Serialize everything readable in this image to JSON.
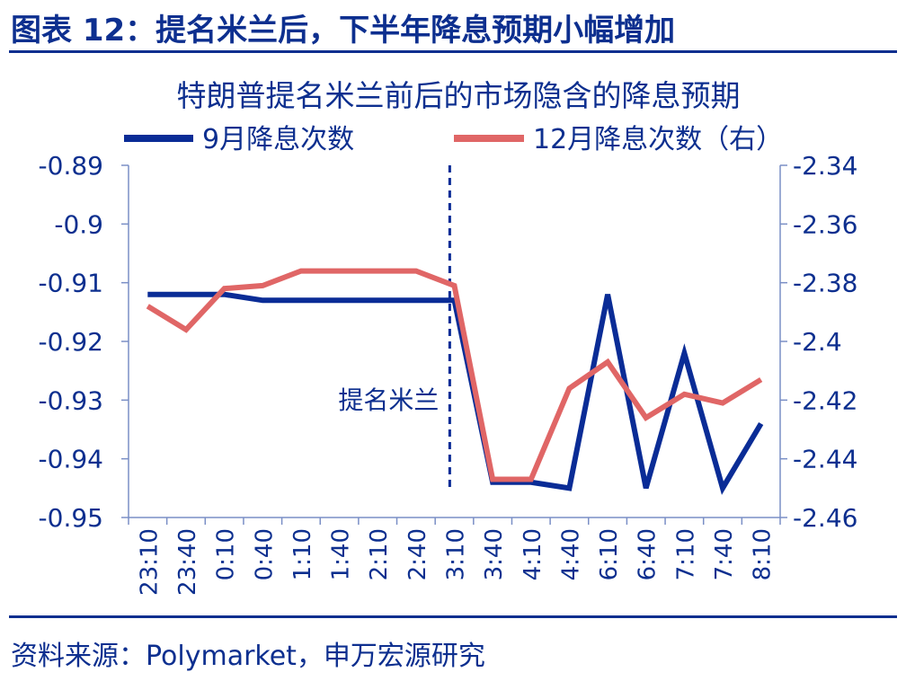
{
  "figure_title": "图表 12：提名米兰后，下半年降息预期小幅增加",
  "source": "资料来源：Polymarket，申万宏源研究",
  "colors": {
    "dark_blue": "#0d2f8f",
    "series1": "#0a2c96",
    "series2": "#e06666",
    "axis": "#7a8fc6"
  },
  "chart_data": {
    "type": "line",
    "title": "特朗普提名米兰前后的市场隐含的降息预期",
    "xlabel": "",
    "ylabel": "",
    "x": [
      "23:10",
      "23:40",
      "0:10",
      "0:40",
      "1:10",
      "1:40",
      "2:10",
      "2:40",
      "3:10",
      "3:40",
      "4:10",
      "4:40",
      "6:10",
      "6:40",
      "7:10",
      "7:40",
      "8:10"
    ],
    "series": [
      {
        "name": "9月降息次数",
        "axis": "left",
        "values": [
          -0.912,
          -0.912,
          -0.912,
          -0.913,
          -0.913,
          -0.913,
          -0.913,
          -0.913,
          -0.913,
          -0.944,
          -0.944,
          -0.945,
          -0.912,
          -0.945,
          -0.922,
          -0.945,
          -0.934
        ]
      },
      {
        "name": "12月降息次数（右）",
        "axis": "right",
        "values": [
          -2.388,
          -2.396,
          -2.382,
          -2.381,
          -2.376,
          -2.376,
          -2.376,
          -2.376,
          -2.381,
          -2.447,
          -2.447,
          -2.416,
          -2.407,
          -2.426,
          -2.418,
          -2.421,
          -2.413
        ]
      }
    ],
    "y_left": {
      "ylim": [
        -0.95,
        -0.89
      ],
      "ticks": [
        "-0.89",
        "-0.9",
        "-0.91",
        "-0.92",
        "-0.93",
        "-0.94",
        "-0.95"
      ]
    },
    "y_right": {
      "ylim": [
        -2.46,
        -2.34
      ],
      "ticks": [
        "-2.34",
        "-2.36",
        "-2.38",
        "-2.4",
        "-2.42",
        "-2.44",
        "-2.46"
      ]
    },
    "annotation": {
      "text": "提名米兰",
      "x": "3:10"
    },
    "grid": false,
    "legend": "top"
  }
}
